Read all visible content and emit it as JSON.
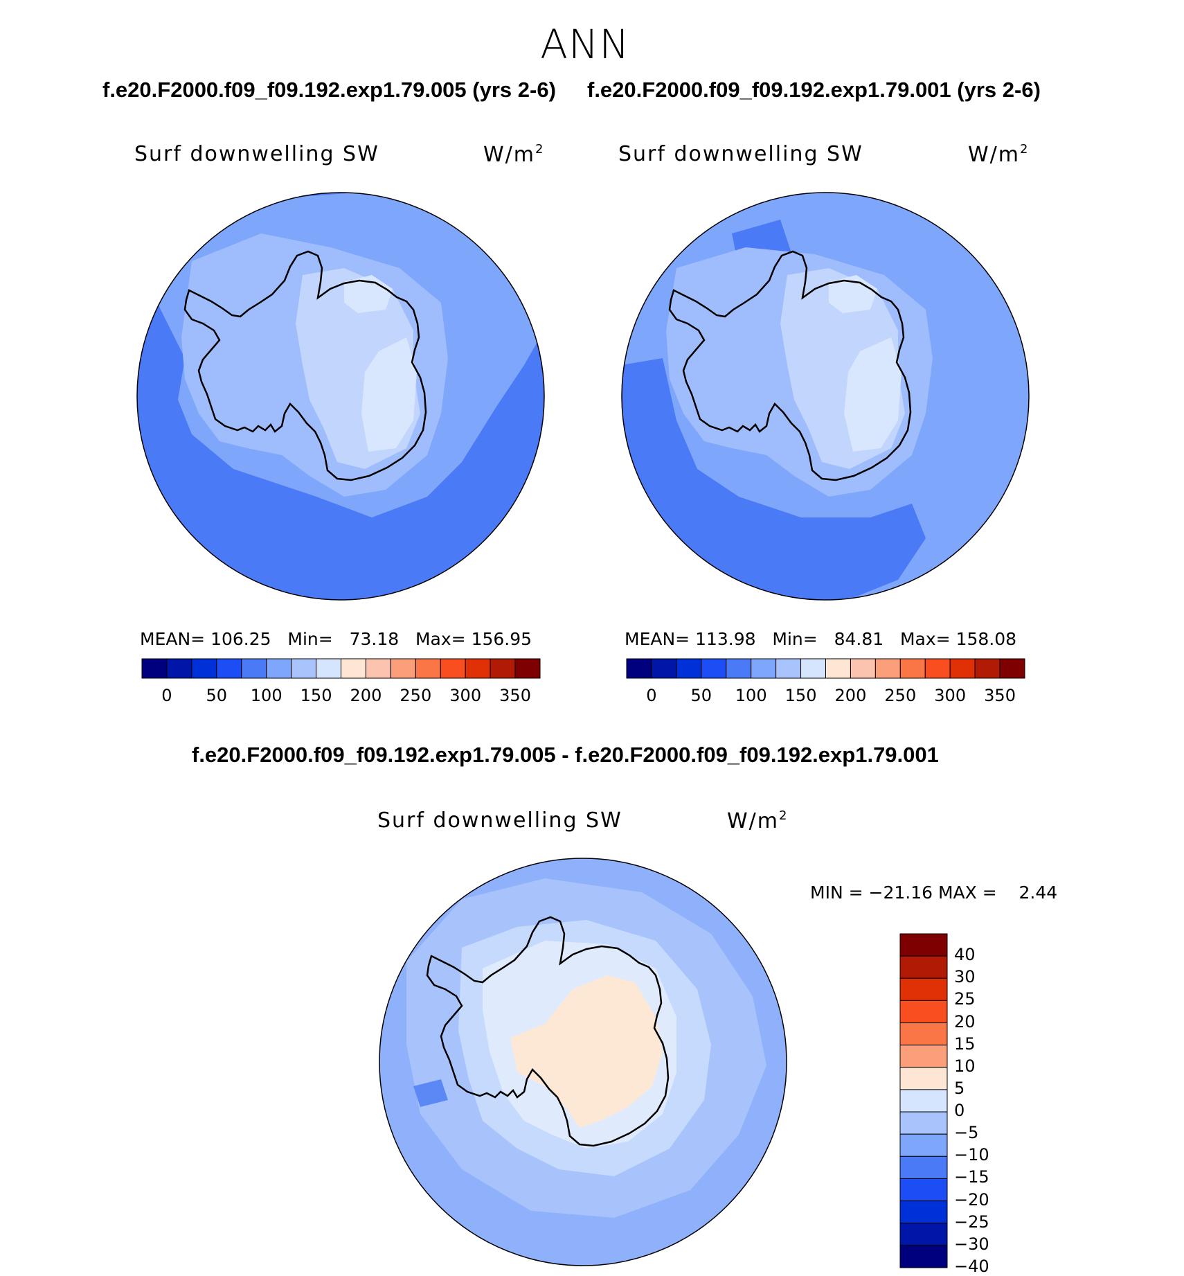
{
  "season": "ANN",
  "case_title_left": "f.e20.F2000.f09_f09.192.exp1.79.005 (yrs 2-6)",
  "case_title_right": "f.e20.F2000.f09_f09.192.exp1.79.001 (yrs 2-6)",
  "diff_title": "f.e20.F2000.f09_f09.192.exp1.79.005 - f.e20.F2000.f09_f09.192.exp1.79.001",
  "variable_label": "Surf downwelling SW",
  "units_base": "W/m",
  "units_exp": "2",
  "colors": {
    "mean_ocean_a": "#4a7af5",
    "mean_ocean_b": "#7ea6fb",
    "mean_coast": "#9fbdfc",
    "mean_inland": "#c1d5fd",
    "mean_plateau": "#d8e7fe",
    "diff_base": "#a8c3fc",
    "diff_light": "#c6dafd",
    "diff_inland": "#dfebfd",
    "diff_pos": "#fde8d6",
    "diff_ocean": "#8fb0fa",
    "diff_dark": "#5b88f4"
  },
  "panels": [
    {
      "id": "panel-left",
      "mean_label": "MEAN=",
      "mean": "106.25",
      "min_label": "Min=",
      "min": "73.18",
      "max_label": "Max=",
      "max": "156.95"
    },
    {
      "id": "panel-right",
      "mean_label": "MEAN=",
      "mean": "113.98",
      "min_label": "Min=",
      "min": "84.81",
      "max_label": "Max=",
      "max": "158.08"
    }
  ],
  "mean_colorbar": {
    "colors": [
      "#00007f",
      "#0016a8",
      "#0030d8",
      "#1d4ef5",
      "#4a7af5",
      "#7ea6fb",
      "#a9c4fd",
      "#d6e5fe",
      "#fde6d4",
      "#fcc4ae",
      "#fb9f7a",
      "#fa7646",
      "#f94e1f",
      "#df3006",
      "#b11a05",
      "#7f0000"
    ],
    "tick_labels": [
      "0",
      "50",
      "100",
      "150",
      "200",
      "250",
      "300",
      "350"
    ]
  },
  "diff_stats": {
    "min_label": "MIN =",
    "min": "−21.16",
    "max_label": "MAX =",
    "max": "2.44"
  },
  "diff_colorbar": {
    "colors": [
      "#7f0000",
      "#b11a05",
      "#df3006",
      "#f94e1f",
      "#fa7646",
      "#fb9f7a",
      "#fde6d4",
      "#d6e5fe",
      "#a9c4fd",
      "#7ea6fb",
      "#4a7af5",
      "#1d4ef5",
      "#0030d8",
      "#0016a8",
      "#00007f"
    ],
    "tick_labels": [
      "40",
      "30",
      "25",
      "20",
      "15",
      "10",
      "5",
      "0",
      "−5",
      "−10",
      "−15",
      "−20",
      "−25",
      "−30",
      "−40"
    ]
  }
}
